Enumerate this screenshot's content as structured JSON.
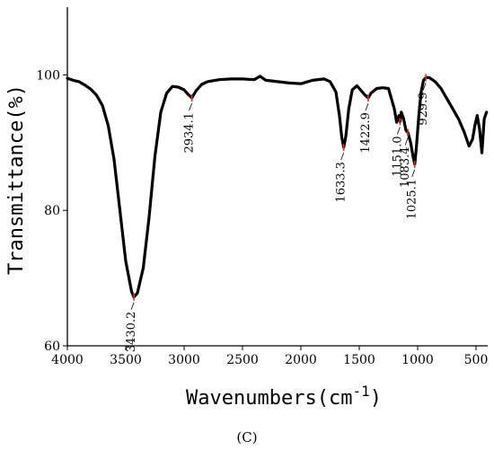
{
  "caption": "(C)",
  "chart_data": {
    "type": "line",
    "xlabel": "Wavenumbers(cm",
    "xlabel_sup": "-1",
    "xlabel_close": ")",
    "ylabel": "Transmittance(%)",
    "xlim": [
      4000,
      400
    ],
    "ylim": [
      60,
      110
    ],
    "x_reversed": true,
    "x_ticks": [
      4000,
      3500,
      3000,
      2500,
      2000,
      1500,
      1000,
      500
    ],
    "y_ticks": [
      60,
      80,
      100
    ],
    "grid": false,
    "line_color": "#000000",
    "marker_color": "#e03030",
    "series": [
      {
        "x": [
          4000,
          3950,
          3900,
          3850,
          3800,
          3750,
          3700,
          3650,
          3600,
          3550,
          3500,
          3450,
          3430,
          3400,
          3350,
          3300,
          3250,
          3200,
          3150,
          3100,
          3050,
          3000,
          2970,
          2934,
          2900,
          2850,
          2800,
          2700,
          2600,
          2500,
          2400,
          2350,
          2300,
          2200,
          2100,
          2000,
          1900,
          1800,
          1750,
          1700,
          1670,
          1650,
          1633,
          1615,
          1590,
          1560,
          1520,
          1480,
          1450,
          1423,
          1400,
          1350,
          1300,
          1250,
          1200,
          1180,
          1160,
          1151,
          1140,
          1120,
          1100,
          1083,
          1060,
          1040,
          1025,
          1010,
          990,
          970,
          950,
          929,
          900,
          850,
          800,
          750,
          700,
          650,
          600,
          560,
          530,
          510,
          490,
          470,
          450,
          430,
          410
        ],
        "y": [
          99.5,
          99.2,
          99.0,
          98.5,
          97.9,
          97.0,
          95.5,
          92.5,
          87.5,
          80.0,
          72.5,
          68.0,
          67.2,
          67.8,
          71.5,
          79.0,
          88.0,
          94.5,
          97.3,
          98.3,
          98.2,
          97.8,
          97.2,
          96.6,
          97.6,
          98.6,
          99.0,
          99.3,
          99.4,
          99.4,
          99.3,
          99.8,
          99.2,
          99.0,
          98.8,
          98.7,
          99.2,
          99.4,
          99.0,
          97.5,
          94.0,
          90.8,
          89.3,
          91.0,
          95.0,
          97.8,
          98.4,
          97.6,
          97.0,
          96.6,
          97.3,
          98.0,
          98.1,
          98.0,
          95.0,
          93.0,
          94.0,
          93.1,
          94.5,
          93.5,
          91.8,
          91.5,
          90.0,
          88.0,
          86.8,
          89.5,
          94.0,
          97.5,
          99.2,
          99.6,
          99.6,
          99.0,
          98.0,
          96.5,
          95.0,
          93.5,
          91.5,
          89.5,
          90.5,
          92.5,
          94.0,
          92.0,
          88.5,
          93.5,
          94.5
        ]
      }
    ],
    "annotations": [
      {
        "x": 3430.2,
        "y": 67.2,
        "label": "3430.2"
      },
      {
        "x": 2934.1,
        "y": 96.6,
        "label": "2934.1"
      },
      {
        "x": 1633.3,
        "y": 89.3,
        "label": "1633.3"
      },
      {
        "x": 1422.9,
        "y": 96.6,
        "label": "1422.9"
      },
      {
        "x": 1151.0,
        "y": 93.1,
        "label": "1151.0"
      },
      {
        "x": 1083.4,
        "y": 91.5,
        "label": "1083.4"
      },
      {
        "x": 1025.1,
        "y": 86.8,
        "label": "1025.1"
      },
      {
        "x": 929.9,
        "y": 99.6,
        "label": "929.9"
      }
    ]
  }
}
